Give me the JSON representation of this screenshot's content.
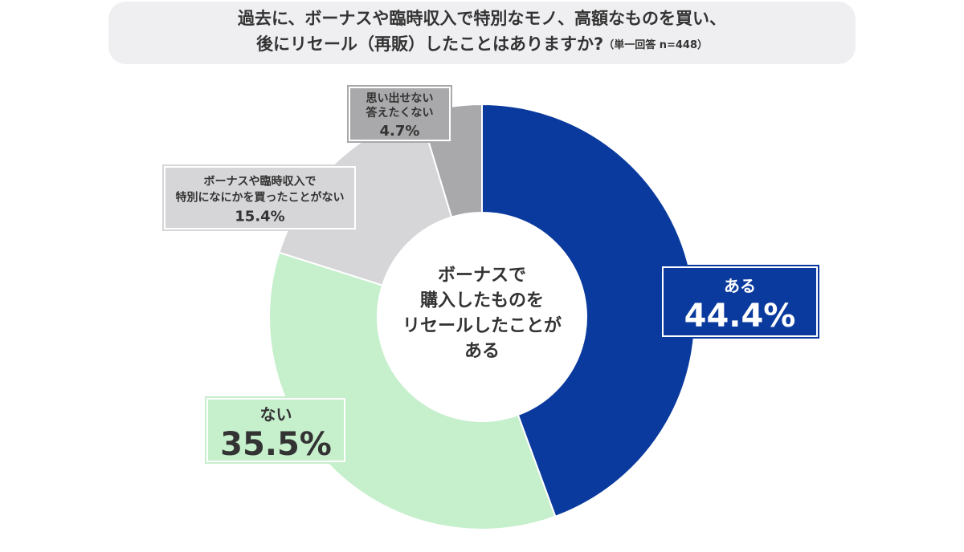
{
  "chart_data": {
    "type": "donut",
    "title": [
      "過去に、ボーナスや臨時収入で特別なモノ、高額なものを買い、",
      "後にリセール（再販）したことはありますか?"
    ],
    "note": "（単一回答 n=448）",
    "center_text": [
      "ボーナスで",
      "購入したものを",
      "リセールしたことが",
      "ある"
    ],
    "categories": [
      [
        "ある"
      ],
      [
        "ない"
      ],
      [
        "ボーナスや臨時収入で",
        "特別になにかを買ったことがない"
      ],
      [
        "思い出せない",
        "答えたくない"
      ]
    ],
    "values": [
      44.4,
      35.5,
      15.4,
      4.7
    ],
    "value_labels": [
      "44.4%",
      "35.5%",
      "15.4%",
      "4.7%"
    ],
    "colors": [
      "#0a3a9e",
      "#c6efcc",
      "#d6d6d9",
      "#a9a9ab"
    ]
  }
}
